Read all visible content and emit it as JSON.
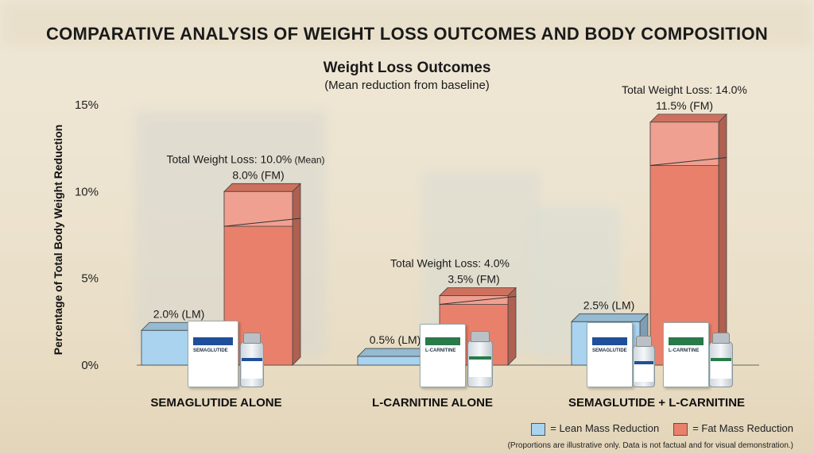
{
  "header": {
    "title": "COMPARATIVE ANALYSIS OF WEIGHT LOSS OUTCOMES AND BODY COMPOSITION",
    "subtitle": "Weight Loss Outcomes",
    "subtitle2": "(Mean reduction from baseline)"
  },
  "chart_data": {
    "type": "bar",
    "stacked": true,
    "ylabel": "Percentage of Total Body Weight Reduction",
    "ylim": [
      0,
      15
    ],
    "yticks": [
      0,
      5,
      10,
      15
    ],
    "ytick_labels": [
      "0%",
      "5%",
      "10%",
      "15%"
    ],
    "categories": [
      "SEMAGLUTIDE ALONE",
      "L-CARNITINE ALONE",
      "SEMAGLUTIDE + L-CARNITINE"
    ],
    "series": [
      {
        "name": "Lean Mass Reduction",
        "values": [
          2.0,
          0.5,
          2.5
        ],
        "color": "#a9d3ee"
      },
      {
        "name": "Fat Mass Reduction",
        "values": [
          8.0,
          3.5,
          11.5
        ],
        "color": "#e9806b"
      }
    ],
    "lean_labels": [
      "2.0% (LM)",
      "0.5% (LM)",
      "2.5% (LM)"
    ],
    "fat_labels": [
      "8.0% (FM)",
      "3.5% (FM)",
      "11.5% (FM)"
    ],
    "total_labels": [
      "Total Weight Loss: 10.0%",
      "Total Weight Loss: 4.0%",
      "Total Weight Loss: 14.0%"
    ],
    "total_values": [
      10.0,
      4.0,
      14.0
    ],
    "total_suffix": [
      "(Mean)",
      "",
      ""
    ],
    "legend_placement": "bottom-right",
    "grid": false
  },
  "legend": {
    "lean": "= Lean Mass Reduction",
    "fat": "= Fat Mass Reduction",
    "lean_color": "#a9d3ee",
    "fat_color": "#e9806b"
  },
  "note": "(Proportions are illustrative only. Data is not factual and for visual demonstration.)"
}
